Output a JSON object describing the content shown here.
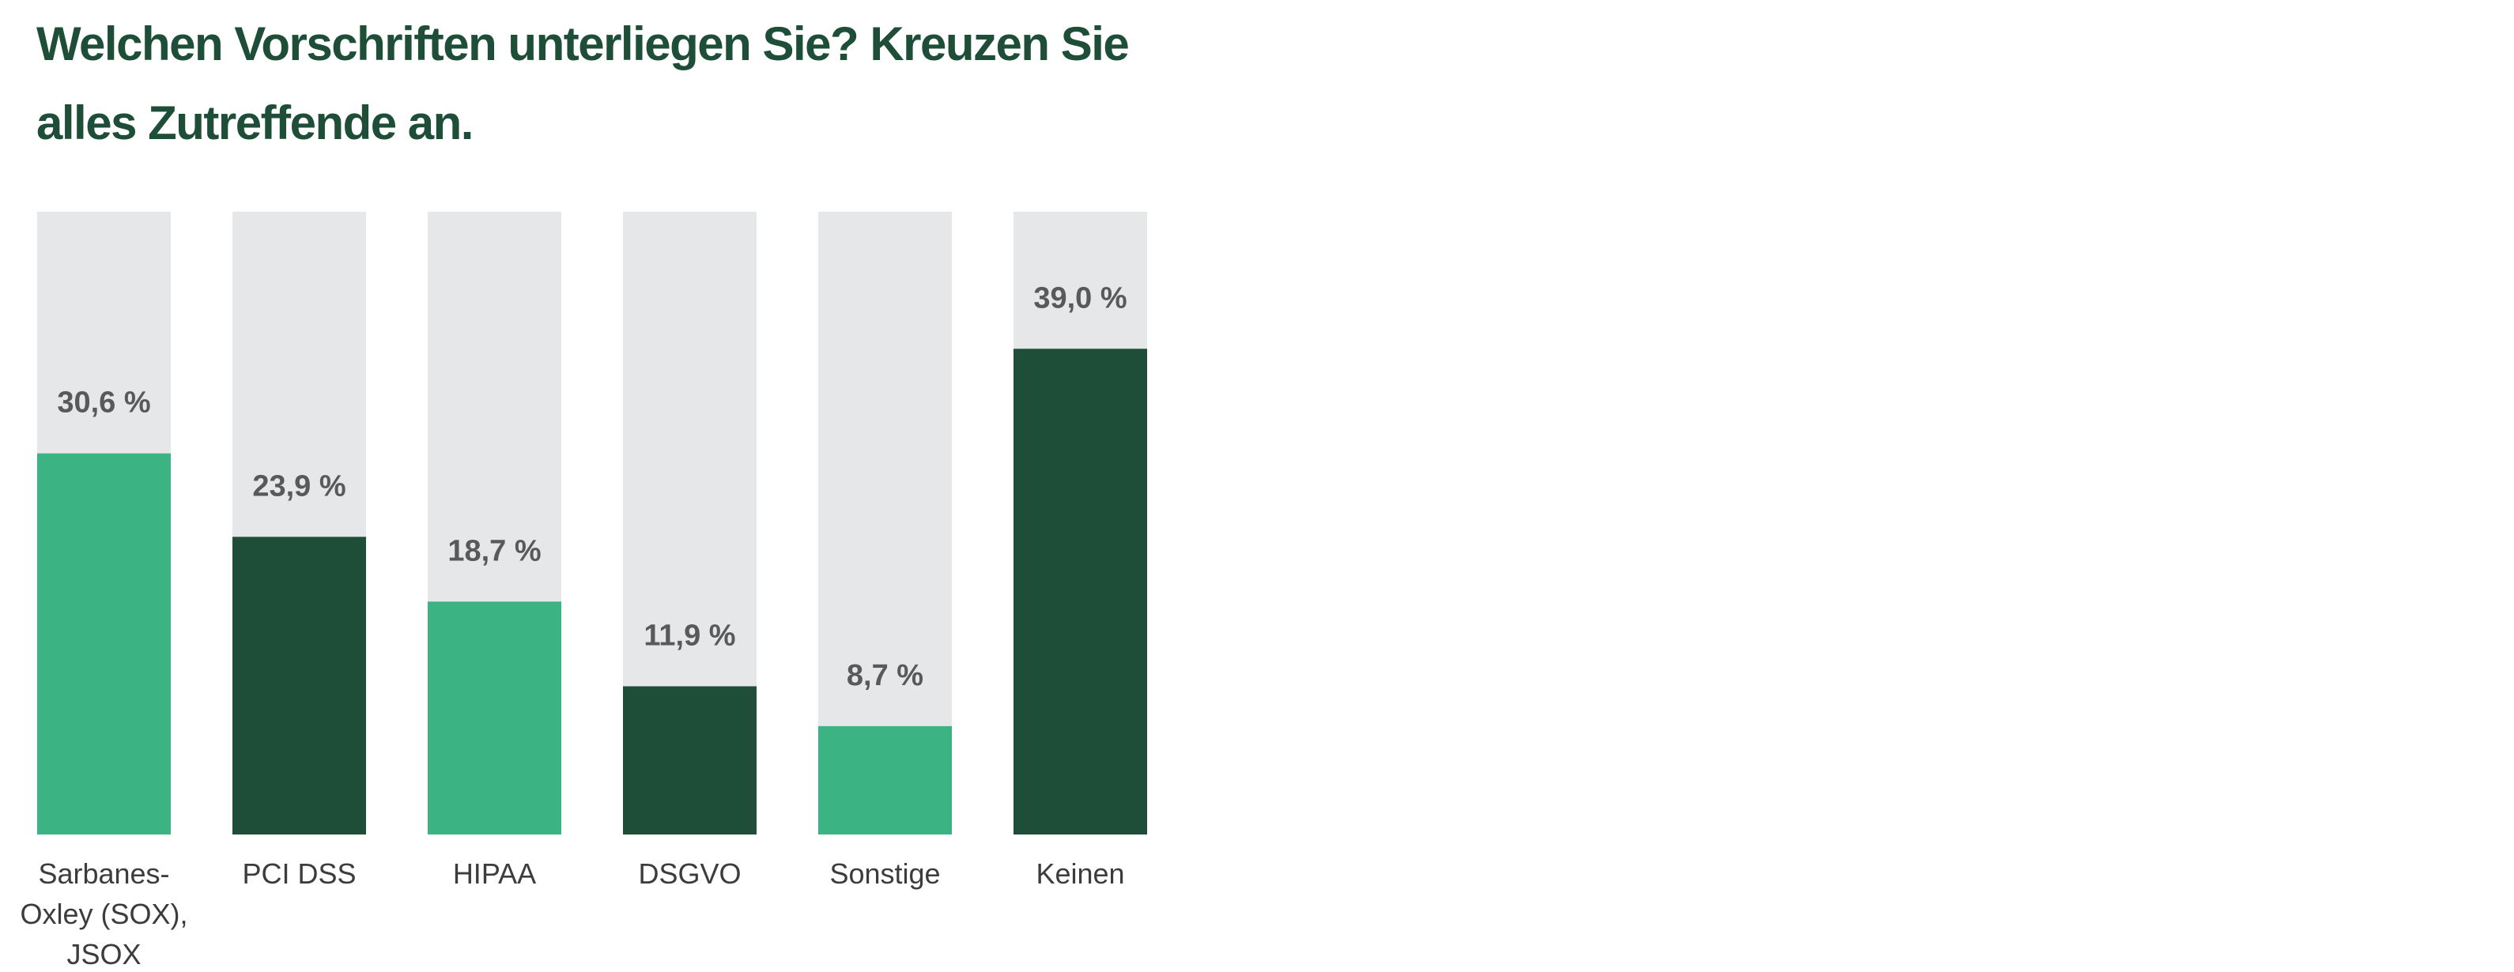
{
  "chart_data": {
    "type": "bar",
    "title": "Welchen Vorschriften unterliegen Sie? Kreuzen Sie alles Zutreffende an.",
    "categories": [
      "Sarbanes-Oxley (SOX), JSOX",
      "PCI DSS",
      "HIPAA",
      "DSGVO",
      "Sonstige",
      "Keinen"
    ],
    "category_lines": [
      [
        "Sarbanes-",
        "Oxley (SOX),",
        "JSOX"
      ],
      [
        "PCI DSS"
      ],
      [
        "HIPAA"
      ],
      [
        "DSGVO"
      ],
      [
        "Sonstige"
      ],
      [
        "Keinen"
      ]
    ],
    "values": [
      30.6,
      23.9,
      18.7,
      11.9,
      8.7,
      39.0
    ],
    "value_labels": [
      "30,6 %",
      "23,9 %",
      "18,7 %",
      "11,9 %",
      "8,7 %",
      "39,0 %"
    ],
    "unit": "%",
    "ylim": [
      0,
      50
    ],
    "bar_colors": [
      "#3bb383",
      "#1e4d38",
      "#3bb383",
      "#1e4d38",
      "#3bb383",
      "#1e4d38"
    ],
    "track_color": "#e6e7e8",
    "title_color": "#1e4d38",
    "grid": false,
    "legend": "none",
    "xlabel": "",
    "ylabel": ""
  }
}
